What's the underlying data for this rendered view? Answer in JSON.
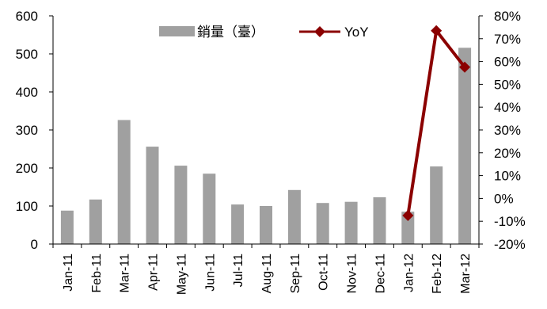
{
  "chart_data": {
    "type": "bar+line",
    "categories": [
      "Jan-11",
      "Feb-11",
      "Mar-11",
      "Apr-11",
      "May-11",
      "Jun-11",
      "Jul-11",
      "Aug-11",
      "Sep-11",
      "Oct-11",
      "Nov-11",
      "Dec-11",
      "Jan-12",
      "Feb-12",
      "Mar-12"
    ],
    "series": [
      {
        "name": "銷量（臺）",
        "type": "bar",
        "axis": "left",
        "color": "#a0a0a0",
        "values": [
          88,
          117,
          326,
          256,
          206,
          185,
          104,
          100,
          142,
          108,
          111,
          123,
          85,
          204,
          516
        ]
      },
      {
        "name": "YoY",
        "type": "line",
        "axis": "right",
        "color": "#8b0000",
        "values": [
          null,
          null,
          null,
          null,
          null,
          null,
          null,
          null,
          null,
          null,
          null,
          null,
          -7.5,
          73.5,
          57.5
        ]
      }
    ],
    "y_left": {
      "min": 0,
      "max": 600,
      "step": 100,
      "ticks": [
        "0",
        "100",
        "200",
        "300",
        "400",
        "500",
        "600"
      ]
    },
    "y_right": {
      "min": -20,
      "max": 80,
      "step": 10,
      "ticks": [
        "-20%",
        "-10%",
        "0%",
        "10%",
        "20%",
        "30%",
        "40%",
        "50%",
        "60%",
        "70%",
        "80%"
      ]
    },
    "legend_position": "top-center",
    "grid": false
  }
}
